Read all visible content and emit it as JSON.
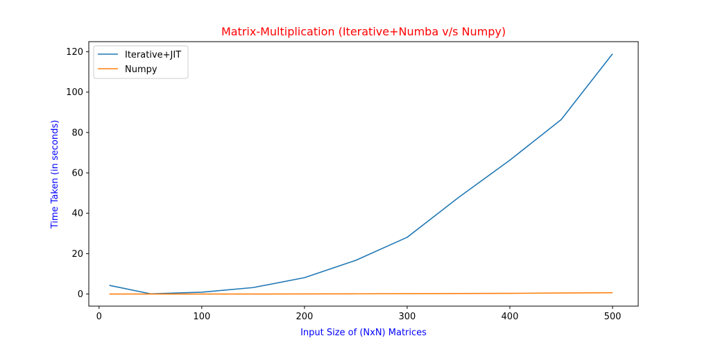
{
  "colors": {
    "title": "#ff0000",
    "axis_label": "#0000ff",
    "series": [
      "#1f77b4",
      "#ff7f0e"
    ]
  },
  "chart_data": {
    "type": "line",
    "title": "Matrix-Multiplication (Iterative+Numba v/s Numpy)",
    "xlabel": "Input Size of (NxN) Matrices",
    "ylabel": "Time Taken (in seconds)",
    "xlim": [
      -10,
      525
    ],
    "ylim": [
      -6,
      125
    ],
    "xticks": [
      0,
      100,
      200,
      300,
      400,
      500
    ],
    "yticks": [
      0,
      20,
      40,
      60,
      80,
      100,
      120
    ],
    "grid": false,
    "legend": "upper-left",
    "x": [
      10,
      50,
      100,
      150,
      200,
      250,
      300,
      350,
      400,
      450,
      500
    ],
    "series": [
      {
        "name": "Iterative+JIT",
        "values": [
          4.3,
          0.1,
          0.9,
          3.2,
          8.1,
          16.7,
          28.1,
          47.8,
          66.3,
          86.4,
          119.0
        ]
      },
      {
        "name": "Numpy",
        "values": [
          0.0,
          0.0,
          0.0,
          0.0,
          0.05,
          0.1,
          0.15,
          0.25,
          0.35,
          0.5,
          0.65
        ]
      }
    ]
  }
}
